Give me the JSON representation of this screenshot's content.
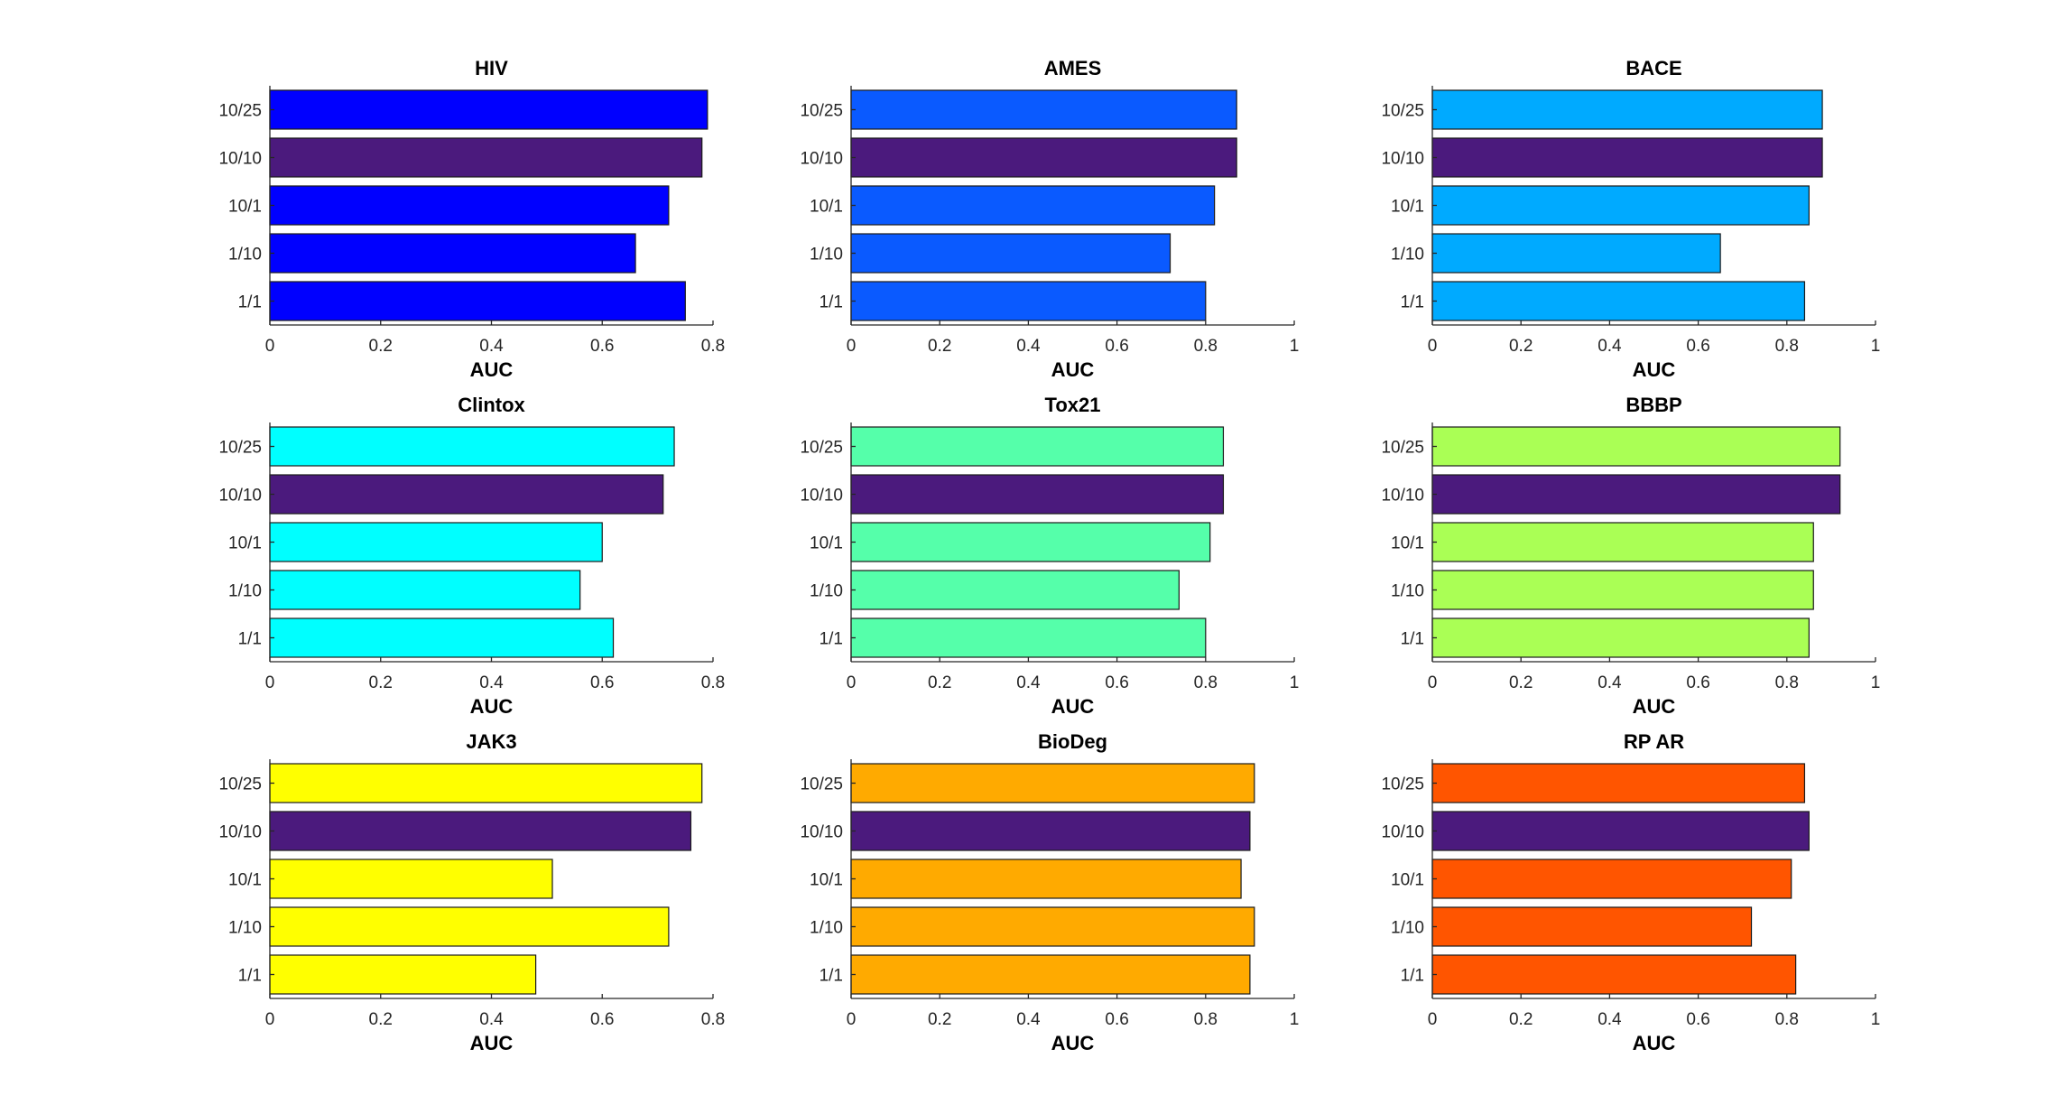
{
  "chart_data": [
    {
      "type": "bar",
      "orientation": "horizontal",
      "title": "HIV",
      "xlabel": "AUC",
      "ylabel": "",
      "categories": [
        "10/25",
        "10/10",
        "10/1",
        "1/10",
        "1/1"
      ],
      "values": [
        0.79,
        0.78,
        0.72,
        0.66,
        0.75
      ],
      "xlim": [
        0,
        0.8
      ],
      "xticks": [
        "0",
        "0.2",
        "0.4",
        "0.6",
        "0.8"
      ],
      "colors": [
        "#0000ff",
        "#4b1a7d",
        "#0000ff",
        "#0000ff",
        "#0000ff"
      ]
    },
    {
      "type": "bar",
      "orientation": "horizontal",
      "title": "AMES",
      "xlabel": "AUC",
      "ylabel": "",
      "categories": [
        "10/25",
        "10/10",
        "10/1",
        "1/10",
        "1/1"
      ],
      "values": [
        0.87,
        0.87,
        0.82,
        0.72,
        0.8
      ],
      "xlim": [
        0,
        1
      ],
      "xticks": [
        "0",
        "0.2",
        "0.4",
        "0.6",
        "0.8",
        "1"
      ],
      "colors": [
        "#0a5aff",
        "#4b1a7d",
        "#0a5aff",
        "#0a5aff",
        "#0a5aff"
      ]
    },
    {
      "type": "bar",
      "orientation": "horizontal",
      "title": "BACE",
      "xlabel": "AUC",
      "ylabel": "",
      "categories": [
        "10/25",
        "10/10",
        "10/1",
        "1/10",
        "1/1"
      ],
      "values": [
        0.88,
        0.88,
        0.85,
        0.65,
        0.84
      ],
      "xlim": [
        0,
        1
      ],
      "xticks": [
        "0",
        "0.2",
        "0.4",
        "0.6",
        "0.8",
        "1"
      ],
      "colors": [
        "#00aaff",
        "#4b1a7d",
        "#00aaff",
        "#00aaff",
        "#00aaff"
      ]
    },
    {
      "type": "bar",
      "orientation": "horizontal",
      "title": "Clintox",
      "xlabel": "AUC",
      "ylabel": "",
      "categories": [
        "10/25",
        "10/10",
        "10/1",
        "1/10",
        "1/1"
      ],
      "values": [
        0.73,
        0.71,
        0.6,
        0.56,
        0.62
      ],
      "xlim": [
        0,
        0.8
      ],
      "xticks": [
        "0",
        "0.2",
        "0.4",
        "0.6",
        "0.8"
      ],
      "colors": [
        "#00ffff",
        "#4b1a7d",
        "#00ffff",
        "#00ffff",
        "#00ffff"
      ]
    },
    {
      "type": "bar",
      "orientation": "horizontal",
      "title": "Tox21",
      "xlabel": "AUC",
      "ylabel": "",
      "categories": [
        "10/25",
        "10/10",
        "10/1",
        "1/10",
        "1/1"
      ],
      "values": [
        0.84,
        0.84,
        0.81,
        0.74,
        0.8
      ],
      "xlim": [
        0,
        1
      ],
      "xticks": [
        "0",
        "0.2",
        "0.4",
        "0.6",
        "0.8",
        "1"
      ],
      "colors": [
        "#55ffaa",
        "#4b1a7d",
        "#55ffaa",
        "#55ffaa",
        "#55ffaa"
      ]
    },
    {
      "type": "bar",
      "orientation": "horizontal",
      "title": "BBBP",
      "xlabel": "AUC",
      "ylabel": "",
      "categories": [
        "10/25",
        "10/10",
        "10/1",
        "1/10",
        "1/1"
      ],
      "values": [
        0.92,
        0.92,
        0.86,
        0.86,
        0.85
      ],
      "xlim": [
        0,
        1
      ],
      "xticks": [
        "0",
        "0.2",
        "0.4",
        "0.6",
        "0.8",
        "1"
      ],
      "colors": [
        "#aaff55",
        "#4b1a7d",
        "#aaff55",
        "#aaff55",
        "#aaff55"
      ]
    },
    {
      "type": "bar",
      "orientation": "horizontal",
      "title": "JAK3",
      "xlabel": "AUC",
      "ylabel": "",
      "categories": [
        "10/25",
        "10/10",
        "10/1",
        "1/10",
        "1/1"
      ],
      "values": [
        0.78,
        0.76,
        0.51,
        0.72,
        0.48
      ],
      "xlim": [
        0,
        0.8
      ],
      "xticks": [
        "0",
        "0.2",
        "0.4",
        "0.6",
        "0.8"
      ],
      "colors": [
        "#ffff00",
        "#4b1a7d",
        "#ffff00",
        "#ffff00",
        "#ffff00"
      ]
    },
    {
      "type": "bar",
      "orientation": "horizontal",
      "title": "BioDeg",
      "xlabel": "AUC",
      "ylabel": "",
      "categories": [
        "10/25",
        "10/10",
        "10/1",
        "1/10",
        "1/1"
      ],
      "values": [
        0.91,
        0.9,
        0.88,
        0.91,
        0.9
      ],
      "xlim": [
        0,
        1
      ],
      "xticks": [
        "0",
        "0.2",
        "0.4",
        "0.6",
        "0.8",
        "1"
      ],
      "colors": [
        "#ffaa00",
        "#4b1a7d",
        "#ffaa00",
        "#ffaa00",
        "#ffaa00"
      ]
    },
    {
      "type": "bar",
      "orientation": "horizontal",
      "title": "RP AR",
      "xlabel": "AUC",
      "ylabel": "",
      "categories": [
        "10/25",
        "10/10",
        "10/1",
        "1/10",
        "1/1"
      ],
      "values": [
        0.84,
        0.85,
        0.81,
        0.72,
        0.82
      ],
      "xlim": [
        0,
        1
      ],
      "xticks": [
        "0",
        "0.2",
        "0.4",
        "0.6",
        "0.8",
        "1"
      ],
      "colors": [
        "#ff5500",
        "#4b1a7d",
        "#ff5500",
        "#ff5500",
        "#ff5500"
      ]
    }
  ]
}
